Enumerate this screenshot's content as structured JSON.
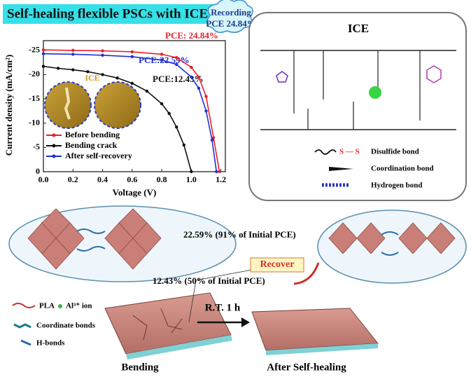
{
  "banner": {
    "title": "Self-healing flexible PSCs with ICE",
    "badge_line1": "Recording",
    "badge_line2": "PCE 24.84%"
  },
  "chart_data": {
    "type": "line",
    "xlabel": "Voltage (V)",
    "ylabel": "Current density (mA/cm²)",
    "xlim": [
      0,
      1.23
    ],
    "ylim": [
      0,
      -27
    ],
    "xticks": [
      {
        "value": 0,
        "label": "0.0"
      },
      {
        "value": 0.2,
        "label": "0.2"
      },
      {
        "value": 0.4,
        "label": "0.4"
      },
      {
        "value": 0.6,
        "label": "0.6"
      },
      {
        "value": 0.8,
        "label": "0.8"
      },
      {
        "value": 1,
        "label": "1.0"
      },
      {
        "value": 1.2,
        "label": "1.2"
      }
    ],
    "yticks": [
      0,
      -5,
      -10,
      -15,
      -20,
      -25
    ],
    "legend": "lower left",
    "series": [
      {
        "name": "Before bending",
        "color": "#e8202a",
        "x": [
          0,
          0.2,
          0.4,
          0.6,
          0.8,
          0.9,
          1.0,
          1.05,
          1.1,
          1.15,
          1.19
        ],
        "values": [
          -25.1,
          -25.0,
          -24.9,
          -24.7,
          -24.2,
          -23.5,
          -21.5,
          -19.5,
          -15.5,
          -7,
          0
        ]
      },
      {
        "name": "Bending crack",
        "color": "#111111",
        "x": [
          0,
          0.1,
          0.2,
          0.3,
          0.4,
          0.5,
          0.6,
          0.7,
          0.8,
          0.85,
          0.9,
          0.95,
          1.0
        ],
        "values": [
          -21.7,
          -21.3,
          -21.0,
          -20.6,
          -20.0,
          -19.3,
          -18.2,
          -16.6,
          -14,
          -12,
          -9.2,
          -5.5,
          0
        ]
      },
      {
        "name": "After self-recovery",
        "color": "#1f2fd6",
        "x": [
          0,
          0.2,
          0.4,
          0.6,
          0.8,
          0.9,
          1.0,
          1.05,
          1.1,
          1.14,
          1.17
        ],
        "values": [
          -24.3,
          -24.2,
          -24.0,
          -23.7,
          -23.0,
          -22.1,
          -19.5,
          -17.2,
          -12.5,
          -6.5,
          0
        ]
      }
    ],
    "annotations": [
      "PCE: 24.84%",
      "PCE:22.59%",
      "PCE:12.43%"
    ],
    "inset_label": "ICE"
  },
  "ice_panel": {
    "title": "ICE",
    "legend": [
      "Disulfide bond",
      "Coordination bond",
      "Hydrogen bond"
    ]
  },
  "bottom": {
    "recovered": "22.59% (91% of Initial PCE)",
    "recover": "Recover",
    "cracked": "12.43% (50% of Initial PCE)",
    "legend": [
      "PLA",
      "Al³⁺ ion",
      "Coordinate bonds",
      "H-bonds"
    ],
    "arrow": "R.T. 1 h",
    "left_caption": "Bending",
    "right_caption": "After Self-healing"
  }
}
